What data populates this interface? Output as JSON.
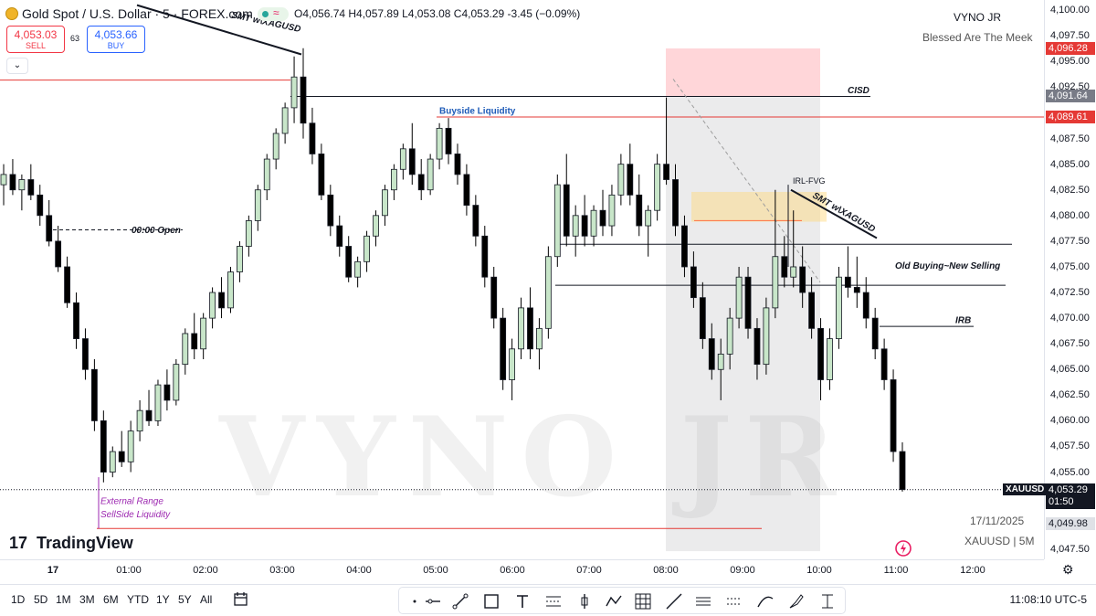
{
  "header": {
    "symbol_title": "Gold Spot / U.S. Dollar · 5 · FOREX.com",
    "ohlc": "O4,056.74 H4,057.89 L4,053.08 C4,053.29 -3.45 (−0.09%)",
    "status_wave": "≈"
  },
  "trade": {
    "sell_price": "4,053.03",
    "sell_label": "SELL",
    "spread": "63",
    "buy_price": "4,053.66",
    "buy_label": "BUY"
  },
  "collapse_glyph": "⌄",
  "author": {
    "name": "VYNO JR",
    "tagline": "Blessed Are The Meek"
  },
  "watermark": "VYNO JR",
  "footer": {
    "date": "17/11/2025",
    "ticker": "XAUUSD | 5M",
    "brand": "TradingView",
    "brand_mark": "17"
  },
  "price_axis": {
    "ticks": [
      "4,100.00",
      "4,097.50",
      "4,095.00",
      "4,092.50",
      "4,087.50",
      "4,085.00",
      "4,082.50",
      "4,080.00",
      "4,077.50",
      "4,075.00",
      "4,072.50",
      "4,070.00",
      "4,067.50",
      "4,065.00",
      "4,062.50",
      "4,060.00",
      "4,057.50",
      "4,055.00",
      "4,047.50"
    ],
    "tick_values": [
      4100,
      4097.5,
      4095,
      4092.5,
      4087.5,
      4085,
      4082.5,
      4080,
      4077.5,
      4075,
      4072.5,
      4070,
      4067.5,
      4065,
      4062.5,
      4060,
      4057.5,
      4055,
      4047.5
    ],
    "labels": {
      "top_red": "4,096.28",
      "cisd_gray": "4,091.64",
      "buyside_red": "4,089.61",
      "current_price": "4,053.29",
      "countdown": "01:50",
      "low_price": "4,049.98"
    },
    "label_values": {
      "top_red": 4096.28,
      "cisd_gray": 4091.64,
      "buyside_red": 4089.61,
      "current_price": 4053.29,
      "low_price": 4049.98
    },
    "symbol_tag": "XAUUSD"
  },
  "time_axis": {
    "ticks": [
      "17",
      "01:00",
      "02:00",
      "03:00",
      "04:00",
      "05:00",
      "06:00",
      "07:00",
      "08:00",
      "09:00",
      "10:00",
      "11:00",
      "12:00"
    ]
  },
  "bottom_bar": {
    "ranges": [
      "1D",
      "5D",
      "1M",
      "3M",
      "6M",
      "YTD",
      "1Y",
      "5Y",
      "All"
    ],
    "clock": "11:08:10 UTC-5",
    "settings_glyph": "⚙"
  },
  "annotations": {
    "smt_left": "SMT w\\XAGUSD",
    "smt_right": "SMT w\\XAGUSD",
    "cisd": "CISD",
    "buyside": "Buyside Liquidity",
    "open": "00:00 Open",
    "irl_fvg": "IRL-FVG",
    "old_buying": "Old Buying~New Selling",
    "irb": "IRB",
    "external_range_1": "External Range",
    "external_range_2": "SellSide Liquidity"
  },
  "colors": {
    "bull_body": "#c8e6c9",
    "bear_body": "#000000",
    "wick": "#000000",
    "accent_red": "#e53935",
    "accent_blue": "#2962ff",
    "annotation_purple": "#9c27b0",
    "label_blue": "#1e5bb8"
  },
  "chart_data": {
    "type": "candlestick",
    "symbol": "XAUUSD",
    "timeframe": "5",
    "ylim": [
      4046.5,
      4101
    ],
    "candles": [
      [
        4083,
        4085,
        4081,
        4084
      ],
      [
        4084,
        4085.5,
        4082,
        4082.5
      ],
      [
        4082.5,
        4084,
        4080.5,
        4083.5
      ],
      [
        4083.5,
        4085,
        4081.5,
        4082
      ],
      [
        4082,
        4083,
        4079,
        4080
      ],
      [
        4080,
        4081.5,
        4077,
        4077.5
      ],
      [
        4077.5,
        4079,
        4074.5,
        4075
      ],
      [
        4075,
        4076,
        4071,
        4071.5
      ],
      [
        4071.5,
        4072.5,
        4067,
        4068
      ],
      [
        4068,
        4069,
        4064,
        4065
      ],
      [
        4065,
        4066,
        4059,
        4060
      ],
      [
        4060,
        4061,
        4054,
        4055
      ],
      [
        4055,
        4057.5,
        4054.5,
        4057
      ],
      [
        4057,
        4059,
        4055.5,
        4056
      ],
      [
        4056,
        4060,
        4055,
        4059
      ],
      [
        4059,
        4062,
        4058,
        4061
      ],
      [
        4061,
        4063,
        4059.5,
        4060
      ],
      [
        4060,
        4064,
        4059.5,
        4063.5
      ],
      [
        4063.5,
        4065,
        4061,
        4062
      ],
      [
        4062,
        4066,
        4061.5,
        4065.5
      ],
      [
        4065.5,
        4069,
        4064.5,
        4068.5
      ],
      [
        4068.5,
        4070.5,
        4066,
        4067
      ],
      [
        4067,
        4070.5,
        4066,
        4070
      ],
      [
        4070,
        4073,
        4069,
        4072.5
      ],
      [
        4072.5,
        4074,
        4070,
        4071
      ],
      [
        4071,
        4075,
        4070.5,
        4074.5
      ],
      [
        4074.5,
        4077.5,
        4073.5,
        4077
      ],
      [
        4077,
        4080,
        4076,
        4079.5
      ],
      [
        4079.5,
        4083,
        4078.5,
        4082.5
      ],
      [
        4082.5,
        4086,
        4081.5,
        4085.5
      ],
      [
        4085.5,
        4088.5,
        4084.5,
        4088
      ],
      [
        4088,
        4091,
        4087,
        4090.5
      ],
      [
        4090.5,
        4095.5,
        4089,
        4093.5
      ],
      [
        4093.5,
        4096.3,
        4087.5,
        4089
      ],
      [
        4089,
        4090.5,
        4085,
        4086
      ],
      [
        4086,
        4087,
        4081.5,
        4082
      ],
      [
        4082,
        4083,
        4078,
        4079
      ],
      [
        4079,
        4080,
        4076,
        4077
      ],
      [
        4077,
        4078,
        4073.5,
        4074
      ],
      [
        4074,
        4076,
        4073,
        4075.5
      ],
      [
        4075.5,
        4078.5,
        4074.5,
        4078
      ],
      [
        4078,
        4080.5,
        4077,
        4080
      ],
      [
        4080,
        4083,
        4079,
        4082.5
      ],
      [
        4082.5,
        4085,
        4081.5,
        4084.5
      ],
      [
        4084.5,
        4087,
        4083.5,
        4086.5
      ],
      [
        4086.5,
        4089,
        4083,
        4084
      ],
      [
        4084,
        4085.5,
        4081.5,
        4082.5
      ],
      [
        4082.5,
        4086,
        4082,
        4085.5
      ],
      [
        4085.5,
        4089,
        4084.5,
        4088.5
      ],
      [
        4088.5,
        4089.5,
        4085,
        4086
      ],
      [
        4086,
        4087,
        4083,
        4084
      ],
      [
        4084,
        4085,
        4080,
        4081
      ],
      [
        4081,
        4082,
        4077,
        4078
      ],
      [
        4078,
        4079,
        4073,
        4074
      ],
      [
        4074,
        4075,
        4069,
        4070
      ],
      [
        4070,
        4071,
        4063,
        4064
      ],
      [
        4064,
        4068,
        4062,
        4067
      ],
      [
        4067,
        4072,
        4066,
        4071
      ],
      [
        4071,
        4073,
        4066,
        4067
      ],
      [
        4067,
        4070,
        4065,
        4069
      ],
      [
        4069,
        4077,
        4068,
        4076
      ],
      [
        4076,
        4084,
        4075,
        4083
      ],
      [
        4083,
        4086,
        4077,
        4078
      ],
      [
        4078,
        4081,
        4076,
        4080
      ],
      [
        4080,
        4082,
        4077,
        4078
      ],
      [
        4078,
        4081,
        4077,
        4080.5
      ],
      [
        4080.5,
        4082.5,
        4078,
        4079
      ],
      [
        4079,
        4083,
        4078,
        4082
      ],
      [
        4082,
        4086,
        4081,
        4085
      ],
      [
        4085,
        4087,
        4081,
        4082
      ],
      [
        4082,
        4084,
        4078,
        4079
      ],
      [
        4079,
        4081,
        4076,
        4080.5
      ],
      [
        4080.5,
        4086,
        4079.5,
        4085
      ],
      [
        4085,
        4091.5,
        4083,
        4083.5
      ],
      [
        4083.5,
        4085,
        4078,
        4079
      ],
      [
        4079,
        4080,
        4074,
        4075
      ],
      [
        4075,
        4076.5,
        4071,
        4072
      ],
      [
        4072,
        4073.5,
        4067,
        4068
      ],
      [
        4068,
        4069.5,
        4064,
        4065
      ],
      [
        4065,
        4068,
        4062,
        4066.5
      ],
      [
        4066.5,
        4071,
        4065,
        4070
      ],
      [
        4070,
        4075,
        4069,
        4074
      ],
      [
        4074,
        4075,
        4068,
        4069
      ],
      [
        4069,
        4070,
        4064,
        4065.5
      ],
      [
        4065.5,
        4072,
        4064.5,
        4071
      ],
      [
        4071,
        4082.5,
        4070,
        4076
      ],
      [
        4076,
        4078,
        4073,
        4074
      ],
      [
        4074,
        4080.5,
        4073,
        4075
      ],
      [
        4075,
        4077,
        4071,
        4072.5
      ],
      [
        4072.5,
        4074,
        4068,
        4069
      ],
      [
        4069,
        4070,
        4062,
        4064
      ],
      [
        4064,
        4069,
        4063,
        4068
      ],
      [
        4068,
        4075,
        4067,
        4074
      ],
      [
        4074,
        4077,
        4072,
        4073
      ],
      [
        4073,
        4076,
        4071,
        4072.5
      ],
      [
        4072.5,
        4074,
        4069,
        4070
      ],
      [
        4070,
        4071,
        4066,
        4067
      ],
      [
        4067,
        4068,
        4063,
        4064
      ],
      [
        4064,
        4065,
        4056,
        4057
      ],
      [
        4057,
        4057.9,
        4053.1,
        4053.3
      ]
    ]
  }
}
